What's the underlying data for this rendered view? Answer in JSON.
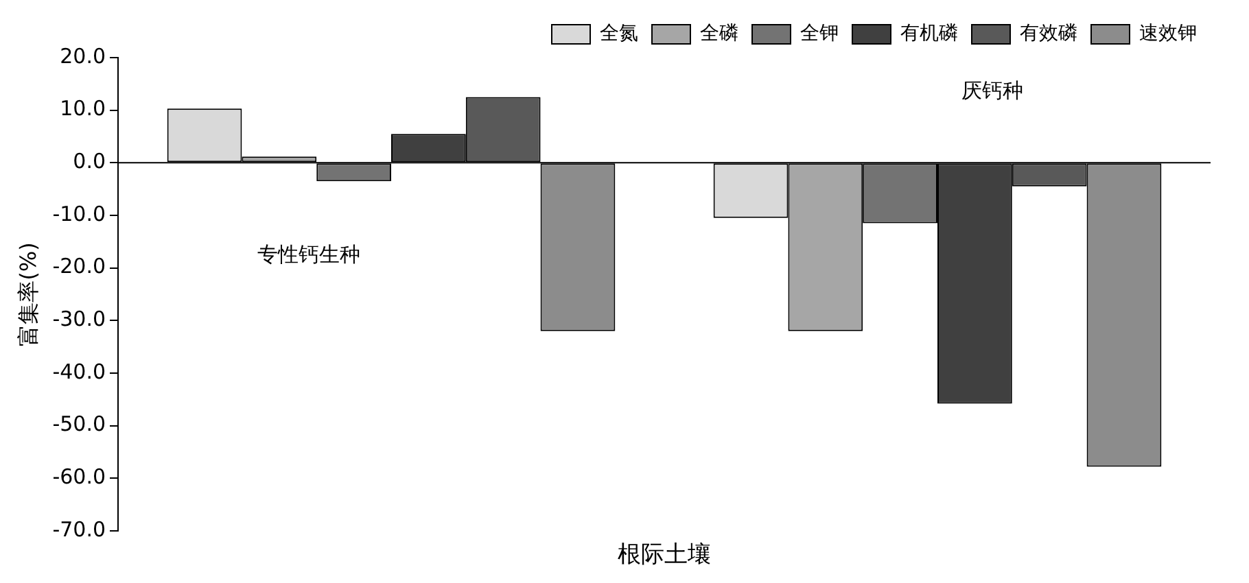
{
  "chart_data": {
    "type": "bar",
    "xlabel": "根际土壤",
    "ylabel": "富集率(%)",
    "categories": [
      null,
      null
    ],
    "series": [
      {
        "name": "全氮",
        "color": "#d9d9d9",
        "values": [
          10.3,
          -10.5
        ]
      },
      {
        "name": "全磷",
        "color": "#a6a6a6",
        "values": [
          1.2,
          -32
        ]
      },
      {
        "name": "全钾",
        "color": "#737373",
        "values": [
          -3.5,
          -11.5
        ]
      },
      {
        "name": "有机磷",
        "color": "#404040",
        "values": [
          5.5,
          -45.8
        ]
      },
      {
        "name": "有效磷",
        "color": "#595959",
        "values": [
          12.5,
          -4.5
        ]
      },
      {
        "name": "速效钾",
        "color": "#8c8c8c",
        "values": [
          -32,
          -57.8
        ]
      }
    ],
    "ylim": [
      -70,
      20
    ],
    "yticks": [
      {
        "value": -70,
        "label": "-70.0"
      },
      {
        "value": -60,
        "label": "-60.0"
      },
      {
        "value": -50,
        "label": "-50.0"
      },
      {
        "value": -40,
        "label": "-40.0"
      },
      {
        "value": -30,
        "label": "-30.0"
      },
      {
        "value": -20,
        "label": "-20.0"
      },
      {
        "value": -10,
        "label": "-10.0"
      },
      {
        "value": 0,
        "label": "0.0"
      },
      {
        "value": 10,
        "label": "10.0"
      },
      {
        "value": 20,
        "label": "20.0"
      }
    ],
    "annotations": [
      "专性钙生种",
      "厌钙种"
    ],
    "ref_lines": [
      {
        "axis": "y",
        "value": 0
      }
    ],
    "legend": "top right",
    "grid": false
  }
}
